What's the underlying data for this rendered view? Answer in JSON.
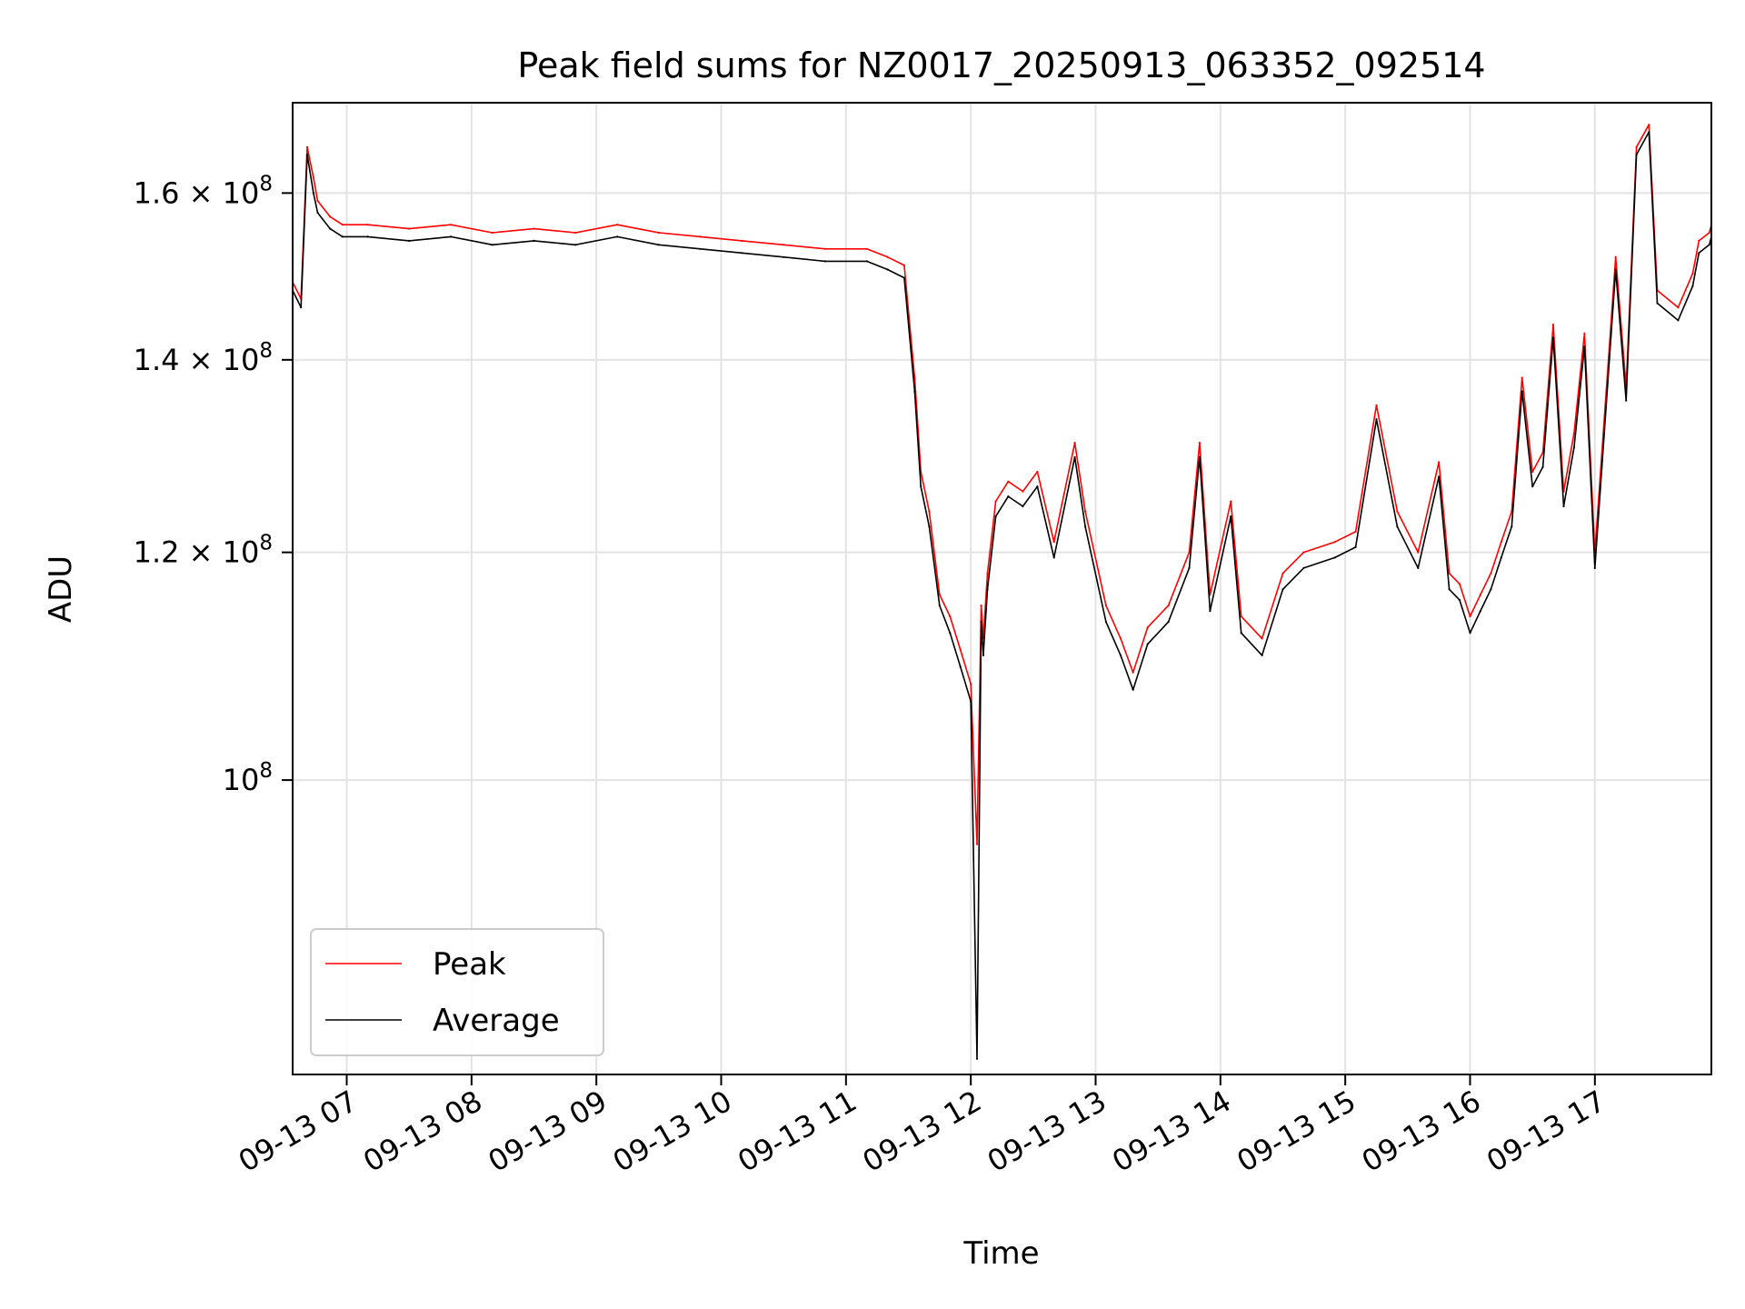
{
  "chart_data": {
    "type": "line",
    "title": "Peak field sums for NZ0017_20250913_063352_092514",
    "xlabel": "Time",
    "ylabel": "ADU",
    "xscale": "time",
    "yscale": "log",
    "xlim": [
      "09-13 06:34",
      "09-13 17:56"
    ],
    "ylim": [
      79000000,
      172000000
    ],
    "grid": true,
    "legend_position": "lower-left",
    "x_ticks": [
      "09-13 07",
      "09-13 08",
      "09-13 09",
      "09-13 10",
      "09-13 11",
      "09-13 12",
      "09-13 13",
      "09-13 14",
      "09-13 15",
      "09-13 16",
      "09-13 17"
    ],
    "y_ticks": [
      {
        "value": 100000000,
        "label_base": "10",
        "label_exp": "8"
      },
      {
        "value": 120000000,
        "label_base": "1.2 × 10",
        "label_exp": "8"
      },
      {
        "value": 140000000,
        "label_base": "1.4 × 10",
        "label_exp": "8"
      },
      {
        "value": 160000000,
        "label_base": "1.6 × 10",
        "label_exp": "8"
      }
    ],
    "series": [
      {
        "name": "Peak",
        "color": "#ff0000",
        "x": [
          "06:34",
          "06:38",
          "06:41",
          "06:44",
          "06:46",
          "06:52",
          "06:58",
          "07:10",
          "07:30",
          "07:50",
          "08:10",
          "08:30",
          "08:50",
          "09:10",
          "09:30",
          "09:50",
          "10:10",
          "10:30",
          "10:50",
          "11:10",
          "11:20",
          "11:28",
          "11:33",
          "11:36",
          "11:40",
          "11:45",
          "11:50",
          "11:55",
          "12:00",
          "12:03",
          "12:05",
          "12:06",
          "12:08",
          "12:12",
          "12:18",
          "12:25",
          "12:32",
          "12:40",
          "12:50",
          "12:55",
          "13:05",
          "13:12",
          "13:18",
          "13:25",
          "13:35",
          "13:45",
          "13:50",
          "13:55",
          "14:05",
          "14:10",
          "14:20",
          "14:30",
          "14:40",
          "14:55",
          "15:05",
          "15:15",
          "15:25",
          "15:35",
          "15:45",
          "15:50",
          "15:55",
          "16:00",
          "16:05",
          "16:10",
          "16:15",
          "16:20",
          "16:25",
          "16:30",
          "16:35",
          "16:40",
          "16:45",
          "16:50",
          "16:55",
          "17:00",
          "17:10",
          "17:15",
          "17:20",
          "17:26",
          "17:30",
          "17:40",
          "17:47",
          "17:50",
          "17:55",
          "17:56"
        ],
        "values": [
          149000000,
          147000000,
          166000000,
          162000000,
          159000000,
          157000000,
          156000000,
          156000000,
          155500000,
          156000000,
          155000000,
          155500000,
          155000000,
          156000000,
          155000000,
          154500000,
          154000000,
          153500000,
          153000000,
          153000000,
          152000000,
          151000000,
          138000000,
          128000000,
          124000000,
          116000000,
          114000000,
          111000000,
          108000000,
          95000000,
          115000000,
          112000000,
          118000000,
          125000000,
          127000000,
          126000000,
          128000000,
          121000000,
          131000000,
          124000000,
          115000000,
          112000000,
          109000000,
          113000000,
          115000000,
          120000000,
          131000000,
          116000000,
          125000000,
          114000000,
          112000000,
          118000000,
          120000000,
          121000000,
          122000000,
          135000000,
          124000000,
          120000000,
          129000000,
          118000000,
          117000000,
          114000000,
          116000000,
          118000000,
          121000000,
          124000000,
          138000000,
          128000000,
          130000000,
          144000000,
          126000000,
          132000000,
          143000000,
          120000000,
          152000000,
          137000000,
          166000000,
          169000000,
          148000000,
          146000000,
          150000000,
          154000000,
          155000000,
          156000000
        ]
      },
      {
        "name": "Average",
        "color": "#000000",
        "x": [
          "06:34",
          "06:38",
          "06:41",
          "06:44",
          "06:46",
          "06:52",
          "06:58",
          "07:10",
          "07:30",
          "07:50",
          "08:10",
          "08:30",
          "08:50",
          "09:10",
          "09:30",
          "09:50",
          "10:10",
          "10:30",
          "10:50",
          "11:10",
          "11:20",
          "11:28",
          "11:33",
          "11:36",
          "11:40",
          "11:45",
          "11:50",
          "11:55",
          "12:00",
          "12:03",
          "12:05",
          "12:06",
          "12:08",
          "12:12",
          "12:18",
          "12:25",
          "12:32",
          "12:40",
          "12:50",
          "12:55",
          "13:05",
          "13:12",
          "13:18",
          "13:25",
          "13:35",
          "13:45",
          "13:50",
          "13:55",
          "14:05",
          "14:10",
          "14:20",
          "14:30",
          "14:40",
          "14:55",
          "15:05",
          "15:15",
          "15:25",
          "15:35",
          "15:45",
          "15:50",
          "15:55",
          "16:00",
          "16:05",
          "16:10",
          "16:15",
          "16:20",
          "16:25",
          "16:30",
          "16:35",
          "16:40",
          "16:45",
          "16:50",
          "16:55",
          "17:00",
          "17:10",
          "17:15",
          "17:20",
          "17:26",
          "17:30",
          "17:40",
          "17:47",
          "17:50",
          "17:55",
          "17:56"
        ],
        "values": [
          148000000,
          146000000,
          165000000,
          160000000,
          157500000,
          155500000,
          154500000,
          154500000,
          154000000,
          154500000,
          153500000,
          154000000,
          153500000,
          154500000,
          153500000,
          153000000,
          152500000,
          152000000,
          151500000,
          151500000,
          150500000,
          149500000,
          136500000,
          126500000,
          122500000,
          115000000,
          112500000,
          109500000,
          106500000,
          80000000,
          113500000,
          110500000,
          116500000,
          123500000,
          125500000,
          124500000,
          126500000,
          119500000,
          129500000,
          122500000,
          113500000,
          110500000,
          107500000,
          111500000,
          113500000,
          118500000,
          129500000,
          114500000,
          123500000,
          112500000,
          110500000,
          116500000,
          118500000,
          119500000,
          120500000,
          133500000,
          122500000,
          118500000,
          127500000,
          116500000,
          115500000,
          112500000,
          114500000,
          116500000,
          119500000,
          122500000,
          136500000,
          126500000,
          128500000,
          142500000,
          124500000,
          130500000,
          141500000,
          118500000,
          150500000,
          135500000,
          165000000,
          168000000,
          146500000,
          144500000,
          148500000,
          152500000,
          153500000,
          154500000
        ]
      }
    ]
  }
}
